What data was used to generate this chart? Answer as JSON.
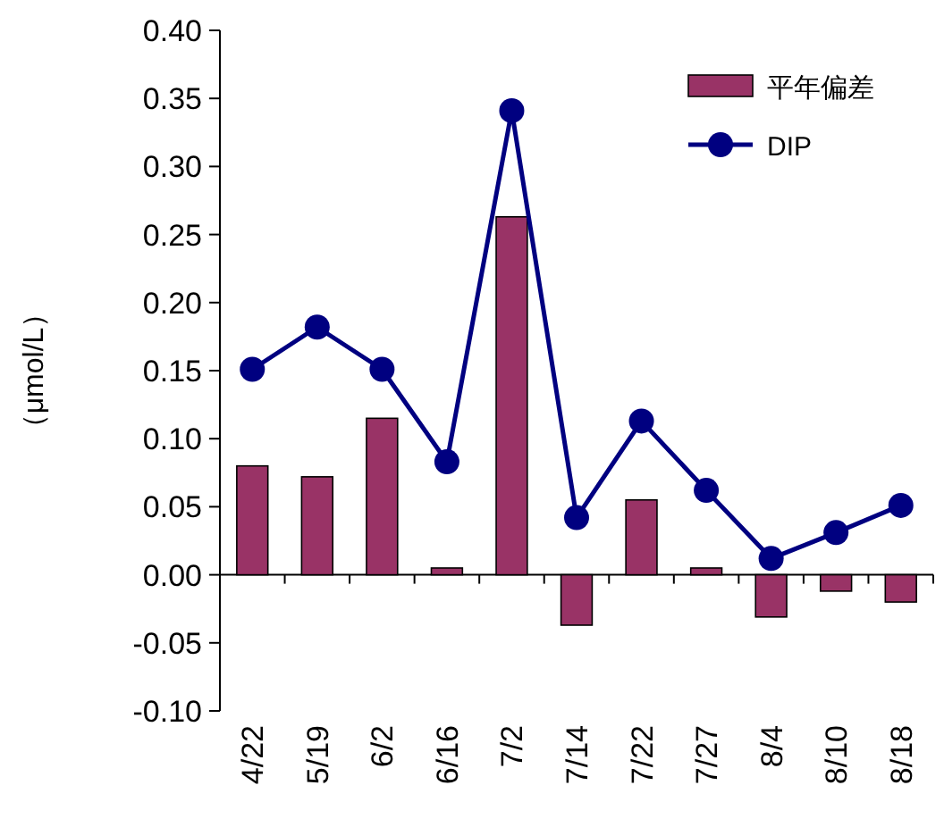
{
  "chart_data": {
    "type": "bar",
    "ylabel": "（μmol/L）",
    "categories": [
      "4/22",
      "5/19",
      "6/2",
      "6/16",
      "7/2",
      "7/14",
      "7/22",
      "7/27",
      "8/4",
      "8/10",
      "8/18"
    ],
    "ylim": [
      -0.1,
      0.4
    ],
    "yticks": [
      {
        "value": -0.1,
        "label": "-0.10"
      },
      {
        "value": -0.05,
        "label": "-0.05"
      },
      {
        "value": 0,
        "label": "0.00"
      },
      {
        "value": 0.05,
        "label": "0.05"
      },
      {
        "value": 0.1,
        "label": "0.10"
      },
      {
        "value": 0.15,
        "label": "0.15"
      },
      {
        "value": 0.2,
        "label": "0.20"
      },
      {
        "value": 0.25,
        "label": "0.25"
      },
      {
        "value": 0.3,
        "label": "0.30"
      },
      {
        "value": 0.35,
        "label": "0.35"
      },
      {
        "value": 0.4,
        "label": "0.40"
      }
    ],
    "legend": "top right",
    "marker": "circle",
    "series": [
      {
        "name": "平年偏差",
        "color": "#993366",
        "values": [
          0.08,
          0.072,
          0.115,
          0.005,
          0.263,
          -0.037,
          0.055,
          0.005,
          -0.031,
          -0.012,
          -0.02
        ]
      },
      {
        "name": "DIP",
        "type": "line",
        "color": "#000080",
        "values": [
          0.151,
          0.182,
          0.151,
          0.083,
          0.341,
          0.042,
          0.113,
          0.062,
          0.012,
          0.031,
          0.051
        ]
      }
    ]
  }
}
